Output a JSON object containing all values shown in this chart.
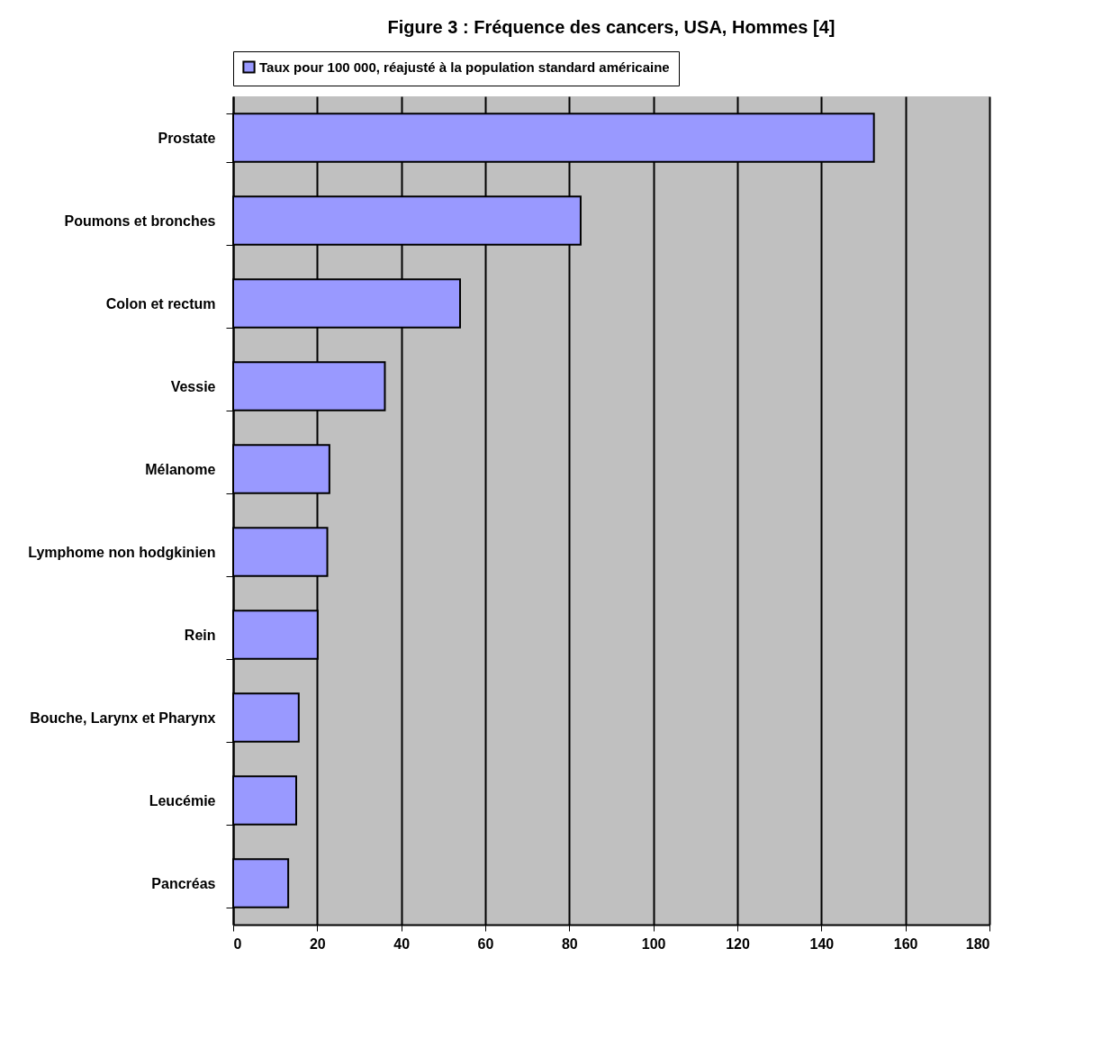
{
  "chart_data": {
    "type": "bar",
    "orientation": "horizontal",
    "title": "Figure 3 : Fréquence des cancers, USA, Hommes [4]",
    "categories": [
      "Prostate",
      "Poumons et bronches",
      "Colon et rectum",
      "Vessie",
      "Mélanome",
      "Lymphome non hodgkinien",
      "Rein",
      "Bouche, Larynx et Pharynx",
      "Leucémie",
      "Pancréas"
    ],
    "series": [
      {
        "name": "Taux pour 100 000, réajusté à la population standard américaine",
        "color": "#9999ff",
        "values": [
          152.5,
          82.7,
          54.0,
          36.1,
          22.9,
          22.4,
          20.1,
          15.6,
          15.0,
          13.1
        ]
      }
    ],
    "xlim": [
      0,
      180
    ],
    "xticks": [
      0,
      20,
      40,
      60,
      80,
      100,
      120,
      140,
      160,
      180
    ],
    "grid": "x",
    "legend": "top"
  }
}
